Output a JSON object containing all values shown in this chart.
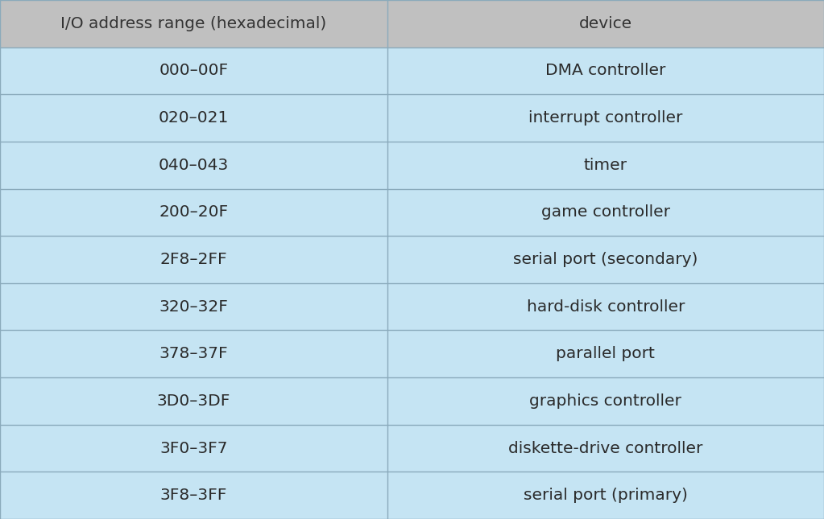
{
  "header": [
    "I/O address range (hexadecimal)",
    "device"
  ],
  "rows": [
    [
      "000–00F",
      "DMA controller"
    ],
    [
      "020–021",
      "interrupt controller"
    ],
    [
      "040–043",
      "timer"
    ],
    [
      "200–20F",
      "game controller"
    ],
    [
      "2F8–2FF",
      "serial port (secondary)"
    ],
    [
      "320–32F",
      "hard-disk controller"
    ],
    [
      "378–37F",
      "parallel port"
    ],
    [
      "3D0–3DF",
      "graphics controller"
    ],
    [
      "3F0–3F7",
      "diskette-drive controller"
    ],
    [
      "3F8–3FF",
      "serial port (primary)"
    ]
  ],
  "header_bg": "#c0c0c0",
  "row_bg": "#c5e4f3",
  "border_color": "#8aaabb",
  "header_text_color": "#333333",
  "row_text_color": "#2a2a2a",
  "col_split": 0.47,
  "header_font_size": 14.5,
  "row_font_size": 14.5,
  "fig_bg": "#c5e4f3"
}
